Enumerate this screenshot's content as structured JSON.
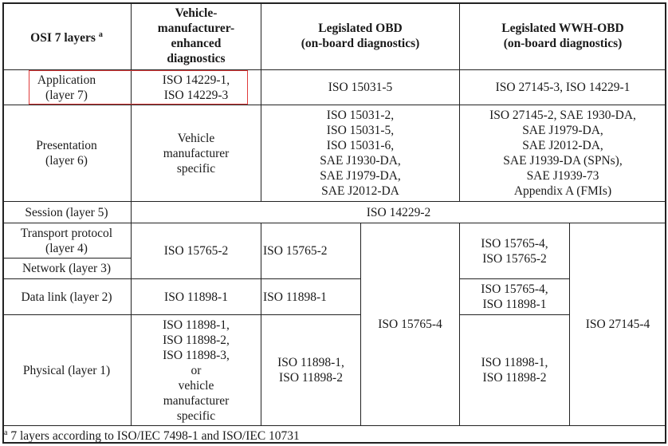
{
  "header": {
    "osi": "OSI 7 layers",
    "osi_note": "a",
    "vehicle": "Vehicle-\nmanufacturer-\nenhanced\ndiagnostics",
    "obd": "Legislated OBD\n(on-board diagnostics)",
    "wwh": "Legislated WWH-OBD\n(on-board diagnostics)"
  },
  "rows": {
    "application": {
      "layer": "Application\n(layer 7)",
      "vehicle": "ISO 14229-1,\nISO 14229-3",
      "obd": "ISO 15031-5",
      "wwh": "ISO 27145-3, ISO 14229-1"
    },
    "presentation": {
      "layer": "Presentation\n(layer 6)",
      "vehicle": "Vehicle\nmanufacturer\nspecific",
      "obd": "ISO 15031-2,\nISO 15031-5,\nISO 15031-6,\nSAE J1930-DA,\nSAE J1979-DA,\nSAE J2012-DA",
      "wwh": "ISO 27145-2, SAE 1930-DA,\nSAE J1979-DA,\nSAE J2012-DA,\nSAE J1939-DA (SPNs),\nSAE J1939-73\nAppendix A (FMIs)"
    },
    "session": {
      "layer": "Session (layer 5)",
      "all": "ISO 14229-2"
    },
    "transport": {
      "layer": "Transport protocol\n(layer 4)"
    },
    "network": {
      "layer": "Network (layer 3)"
    },
    "transport_network": {
      "vehicle": "ISO 15765-2",
      "obd_a": "ISO 15765-2",
      "wwh_a": "ISO 15765-4,\nISO 15765-2"
    },
    "datalink": {
      "layer": "Data link (layer 2)",
      "vehicle": "ISO 11898-1",
      "obd_a": "ISO 11898-1",
      "wwh_a": "ISO 15765-4,\nISO 11898-1"
    },
    "physical": {
      "layer": "Physical (layer 1)",
      "vehicle": "ISO 11898-1,\nISO 11898-2,\nISO 11898-3,\nor\nvehicle\nmanufacturer\nspecific",
      "obd_a": "ISO 11898-1,\nISO 11898-2",
      "wwh_a": "ISO 11898-1,\nISO 11898-2"
    },
    "lower_span": {
      "obd_b": "ISO 15765-4",
      "wwh_b": "ISO 27145-4"
    }
  },
  "footnote": {
    "mark": "a",
    "text": "7 layers according to ISO/IEC 7498-1 and ISO/IEC 10731"
  },
  "highlight_color": "#e03a3a"
}
